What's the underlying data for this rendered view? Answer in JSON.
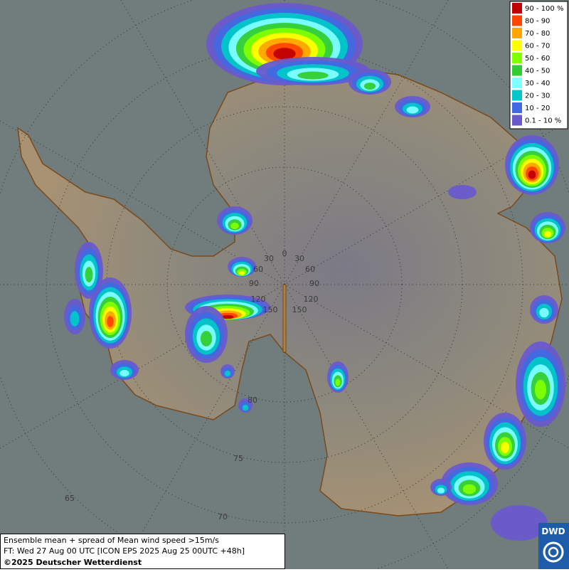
{
  "legend": {
    "items": [
      {
        "label": "90 - 100 %",
        "color": "#c00000"
      },
      {
        "label": "80 - 90",
        "color": "#ff4500"
      },
      {
        "label": "70 - 80",
        "color": "#ffa500"
      },
      {
        "label": "60 - 70",
        "color": "#ffff00"
      },
      {
        "label": "50 - 60",
        "color": "#7fff00"
      },
      {
        "label": "40 - 50",
        "color": "#32cd32"
      },
      {
        "label": "30 - 40",
        "color": "#7fffff"
      },
      {
        "label": "20 - 30",
        "color": "#00c8c8"
      },
      {
        "label": "10 - 20",
        "color": "#4169e1"
      },
      {
        "label": "0.1 - 10 %",
        "color": "#6a5acd"
      }
    ]
  },
  "graticule": {
    "labels": [
      "0",
      "30",
      "30",
      "60",
      "60",
      "90",
      "90",
      "120",
      "120",
      "150",
      "150",
      "80",
      "75",
      "70",
      "65"
    ]
  },
  "footer": {
    "lines": [
      "Ensemble mean + spread of Mean wind speed >15m/s",
      "FT: Wed 27 Aug 00 UTC [ICON EPS 2025 Aug 25 00UTC +48h]",
      "©2025 Deutscher Wetterdienst"
    ]
  },
  "logo": {
    "text": "DWD"
  }
}
